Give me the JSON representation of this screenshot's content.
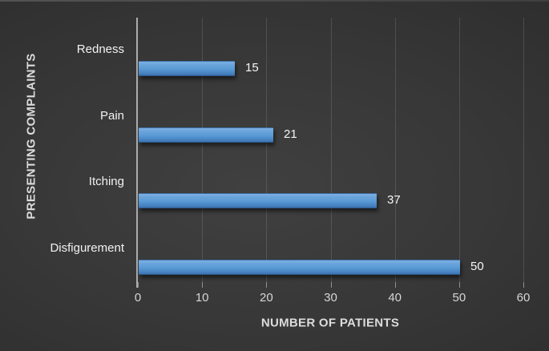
{
  "chart_data": {
    "type": "bar",
    "orientation": "horizontal",
    "title": "",
    "categories": [
      "Redness",
      "Pain",
      "Itching",
      "Disfigurement"
    ],
    "values": [
      15,
      21,
      37,
      50
    ],
    "data_labels": [
      "15",
      "21",
      "37",
      "50"
    ],
    "xlabel": "NUMBER OF PATIENTS",
    "ylabel": "PRESENTING COMPLAINTS",
    "x_ticks": [
      "0",
      "10",
      "20",
      "30",
      "40",
      "50",
      "60"
    ],
    "xlim": [
      0,
      60
    ],
    "grid": "vertical-major",
    "legend": "none",
    "data_label_position": "outside-end",
    "colors": {
      "bar": "#5B9BD5",
      "bar_gradient_top": "#7DB0E3",
      "bar_gradient_bottom": "#3E72AF",
      "background_center": "#404040",
      "background_edge": "#242424",
      "axis_line": "#ACACAC",
      "gridline": "rgba(255,255,255,0.13)",
      "text": "#F2F2F2",
      "axis_title_text": "#DCDCDC"
    }
  }
}
